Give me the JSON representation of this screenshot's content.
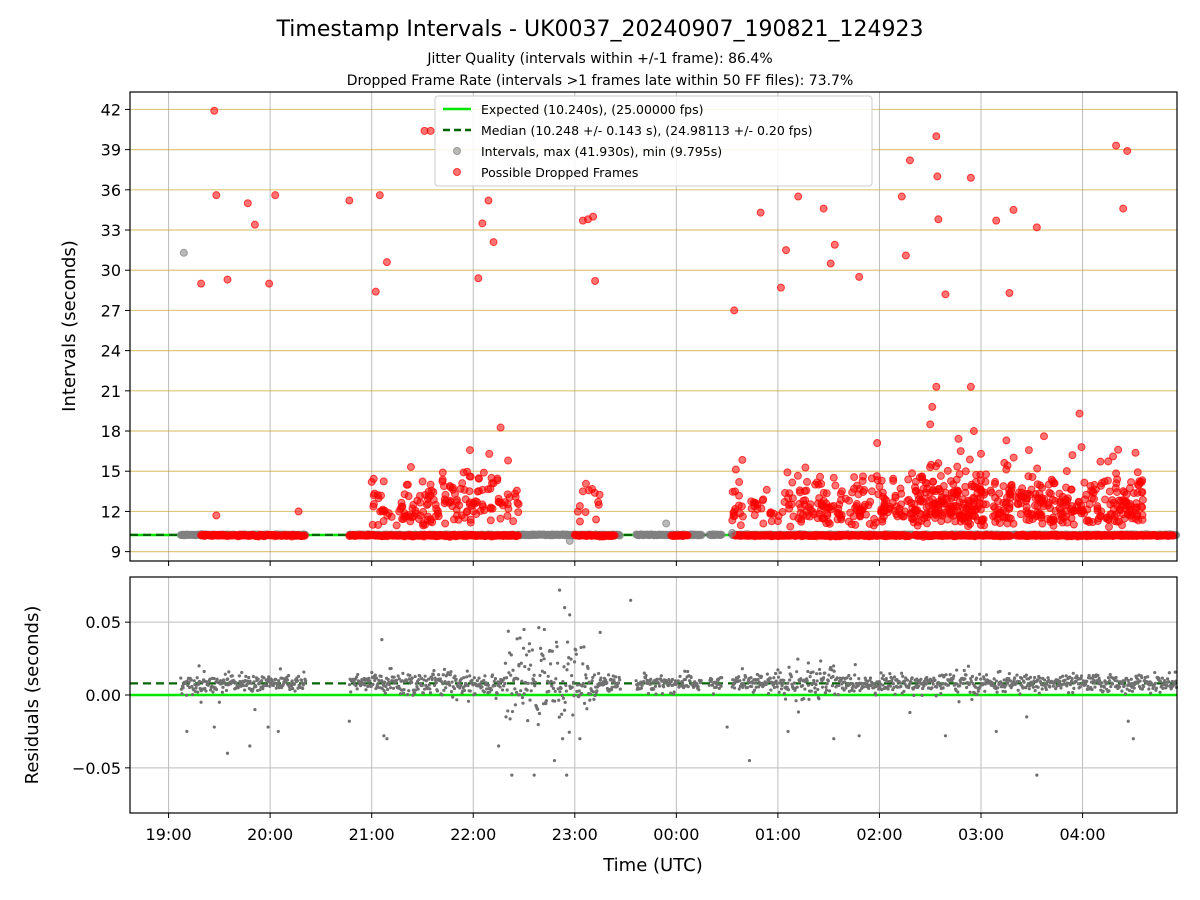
{
  "chart_data": [
    {
      "type": "scatter",
      "title": "Timestamp Intervals - UK0037_20240907_190821_124923",
      "subtitle_1": "Jitter Quality (intervals within +/-1 frame): 86.4%",
      "subtitle_2": "Dropped Frame Rate (intervals >1 frames late within 50 FF files): 73.7%",
      "xlabel": "",
      "ylabel": "Intervals (seconds)",
      "x_axis": "time_utc_hours",
      "xlim": [
        18.62,
        28.93
      ],
      "ylim": [
        8.3,
        43.3
      ],
      "yticks": [
        9,
        12,
        15,
        18,
        21,
        24,
        27,
        30,
        33,
        36,
        39,
        42
      ],
      "ytick_labels": [
        "9",
        "12",
        "15",
        "18",
        "21",
        "24",
        "27",
        "30",
        "33",
        "36",
        "39",
        "42"
      ],
      "grid": true,
      "legend_position": "top-center",
      "expected_value": 10.24,
      "median_value": 10.248,
      "legend": [
        {
          "label": "Expected (10.240s), (25.00000 fps)",
          "color": "#00e600",
          "style": "solid-line"
        },
        {
          "label": "Median (10.248 +/- 0.143 s), (24.98113 +/- 0.20 fps)",
          "color": "#006400",
          "style": "dashed-line"
        },
        {
          "label": "Intervals, max (41.930s), min (9.795s)",
          "color": "#808080",
          "style": "marker"
        },
        {
          "label": "Possible Dropped Frames",
          "color": "#ff0000",
          "style": "marker"
        }
      ],
      "series": [
        {
          "color": "#ff0000",
          "x": [
            19.32,
            19.45,
            19.47,
            19.58,
            19.78,
            19.85,
            19.99,
            20.05,
            20.78,
            21.04,
            21.08,
            21.15,
            21.52,
            21.58,
            22.05,
            22.09,
            22.15,
            22.2,
            23.08,
            23.13,
            23.18,
            23.2,
            24.57,
            24.83,
            25.03,
            25.08,
            25.2,
            25.45,
            25.52,
            25.56,
            25.8,
            26.22,
            26.26,
            26.3,
            26.56,
            26.57,
            26.58,
            26.65,
            26.9,
            27.15,
            27.28,
            27.32,
            27.55,
            28.33,
            28.4,
            28.44,
            26.56,
            26.58,
            26.9,
            26.93,
            26.52,
            26.5,
            27.0,
            27.25,
            26.8,
            26.85,
            27.9,
            27.97,
            27.99,
            28.35,
            28.3,
            21.58,
            21.7,
            21.77,
            21.82,
            22.2,
            22.25,
            21.0,
            21.02,
            19.47,
            20.28,
            23.05,
            23.23,
            23.08,
            24.57,
            24.8,
            25.1,
            25.25,
            25.4,
            25.55,
            25.7,
            25.85,
            26.1,
            26.35,
            26.6,
            26.95,
            27.4,
            27.6,
            27.85,
            28.1,
            28.25,
            28.45
          ],
          "y": [
            29.0,
            41.9,
            35.6,
            29.3,
            35.0,
            33.4,
            29.0,
            35.6,
            35.2,
            28.4,
            35.6,
            30.6,
            40.4,
            40.4,
            29.4,
            33.5,
            35.2,
            32.1,
            33.7,
            33.8,
            34.0,
            29.2,
            27.0,
            34.3,
            28.7,
            31.5,
            35.5,
            34.6,
            30.5,
            31.9,
            29.5,
            35.5,
            31.1,
            38.2,
            40.0,
            37.0,
            33.8,
            28.2,
            36.9,
            33.7,
            28.3,
            34.5,
            33.2,
            39.3,
            34.6,
            38.9,
            21.3,
            15.6,
            21.3,
            18.0,
            19.8,
            18.5,
            16.3,
            17.3,
            16.5,
            15.0,
            16.2,
            19.3,
            16.8,
            16.6,
            16.1,
            14.0,
            14.9,
            13.9,
            13.3,
            14.1,
            12.7,
            14.2,
            13.2,
            11.7,
            12.0,
            12.4,
            12.7,
            13.5,
            12.0,
            12.5,
            13.0,
            12.8,
            14.0,
            12.4,
            12.8,
            13.6,
            12.2,
            13.8,
            13.5,
            14.2,
            13.4,
            13.0,
            12.8,
            13.5,
            14.3,
            12.4
          ]
        },
        {
          "color": "#808080",
          "x": [
            19.15,
            22.95,
            23.9,
            24.55
          ],
          "y": [
            31.3,
            9.8,
            11.1,
            10.4
          ]
        }
      ]
    },
    {
      "type": "scatter",
      "xlabel": "Time (UTC)",
      "ylabel": "Residuals (seconds)",
      "x_axis": "time_utc_hours",
      "xlim": [
        18.62,
        28.93
      ],
      "ylim": [
        -0.081,
        0.081
      ],
      "yticks": [
        -0.05,
        0.0,
        0.05
      ],
      "ytick_labels": [
        "−0.05",
        "0.00",
        "0.05"
      ],
      "xticks": [
        19,
        20,
        21,
        22,
        23,
        24,
        25,
        26,
        27,
        28
      ],
      "xtick_labels": [
        "19:00",
        "20:00",
        "21:00",
        "22:00",
        "23:00",
        "00:00",
        "01:00",
        "02:00",
        "03:00",
        "04:00"
      ],
      "grid": true,
      "expected_value": 0.0,
      "median_value": 0.008,
      "series": [
        {
          "color": "#707070",
          "x": [
            19.18,
            19.3,
            19.32,
            19.45,
            19.5,
            19.58,
            19.8,
            19.85,
            19.98,
            20.08,
            20.78,
            21.1,
            21.12,
            21.15,
            22.25,
            22.38,
            22.45,
            22.5,
            22.55,
            22.6,
            22.7,
            22.75,
            22.8,
            22.85,
            22.88,
            22.9,
            22.92,
            22.95,
            23.05,
            23.25,
            23.55,
            24.5,
            24.65,
            24.72,
            25.1,
            25.3,
            25.55,
            25.8,
            26.3,
            26.65,
            27.15,
            27.45,
            27.55,
            28.45,
            28.5
          ],
          "y": [
            -0.025,
            0.02,
            -0.005,
            -0.022,
            -0.005,
            -0.04,
            -0.035,
            -0.01,
            -0.022,
            -0.025,
            -0.018,
            0.038,
            -0.028,
            -0.03,
            -0.035,
            -0.055,
            0.02,
            0.045,
            0.03,
            -0.055,
            0.045,
            0.03,
            -0.045,
            0.072,
            -0.03,
            0.06,
            -0.055,
            0.055,
            -0.03,
            0.043,
            0.065,
            -0.022,
            0.018,
            -0.045,
            -0.025,
            0.022,
            -0.03,
            -0.028,
            -0.012,
            -0.028,
            -0.025,
            -0.015,
            -0.055,
            -0.018,
            -0.03
          ]
        }
      ]
    }
  ]
}
